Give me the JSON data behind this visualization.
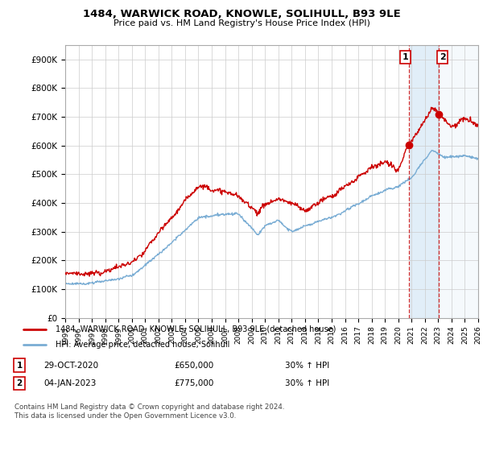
{
  "title": "1484, WARWICK ROAD, KNOWLE, SOLIHULL, B93 9LE",
  "subtitle": "Price paid vs. HM Land Registry's House Price Index (HPI)",
  "ylabel_ticks": [
    "£0",
    "£100K",
    "£200K",
    "£300K",
    "£400K",
    "£500K",
    "£600K",
    "£700K",
    "£800K",
    "£900K"
  ],
  "ytick_values": [
    0,
    100000,
    200000,
    300000,
    400000,
    500000,
    600000,
    700000,
    800000,
    900000
  ],
  "ylim": [
    0,
    950000
  ],
  "x_start_year": 1995,
  "x_end_year": 2026,
  "red_line_color": "#cc0000",
  "blue_line_color": "#7aadd4",
  "shaded_color": "#daeaf7",
  "marker1_x": 2020.83,
  "marker2_x": 2023.02,
  "marker1_value": 650000,
  "marker2_value": 775000,
  "legend_label1": "1484, WARWICK ROAD, KNOWLE, SOLIHULL, B93 9LE (detached house)",
  "legend_label2": "HPI: Average price, detached house, Solihull",
  "table_row1": [
    "1",
    "29-OCT-2020",
    "£650,000",
    "30% ↑ HPI"
  ],
  "table_row2": [
    "2",
    "04-JAN-2023",
    "£775,000",
    "30% ↑ HPI"
  ],
  "footnote": "Contains HM Land Registry data © Crown copyright and database right 2024.\nThis data is licensed under the Open Government Licence v3.0.",
  "background_color": "#ffffff",
  "plot_bg_color": "#ffffff"
}
